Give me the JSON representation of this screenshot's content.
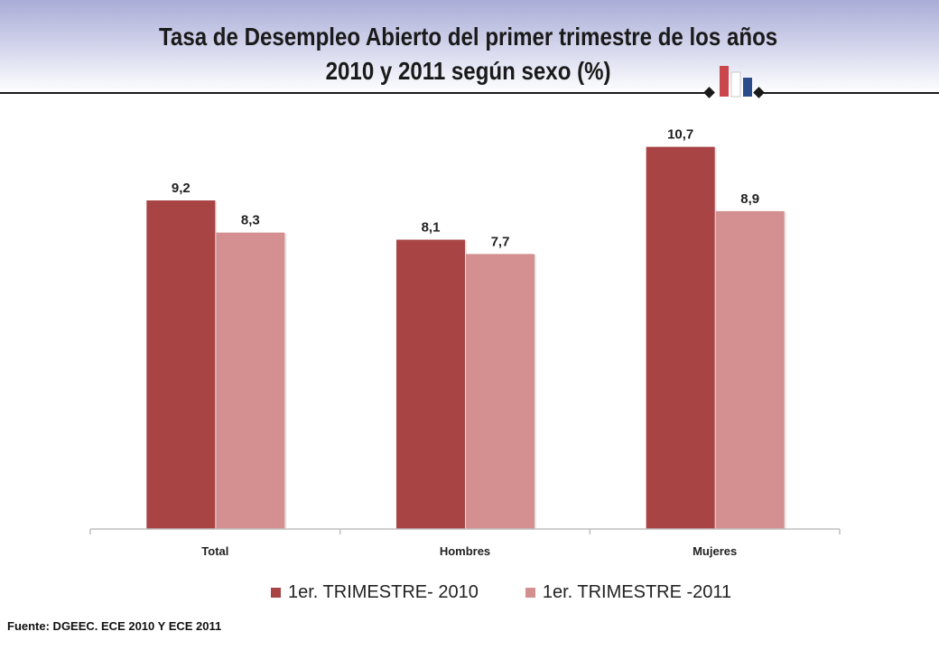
{
  "header": {
    "title_line1": "Tasa de Desempleo Abierto del primer trimestre de los años",
    "title_line2": "2010 y 2011 según sexo (%)"
  },
  "chart_data": {
    "type": "bar",
    "categories": [
      "Total",
      "Hombres",
      "Mujeres"
    ],
    "series": [
      {
        "name": "1er. TRIMESTRE- 2010",
        "values": [
          9.2,
          8.1,
          10.7
        ],
        "labels": [
          "9,2",
          "8,1",
          "10,7"
        ],
        "color": "#a84444"
      },
      {
        "name": "1er. TRIMESTRE -2011",
        "values": [
          8.3,
          7.7,
          8.9
        ],
        "labels": [
          "8,3",
          "7,7",
          "8,9"
        ],
        "color": "#d49090"
      }
    ],
    "ylim": [
      0,
      11.5
    ],
    "grid": false,
    "legend_position": "bottom"
  },
  "footer": {
    "source": "Fuente: DGEEC. ECE 2010 Y ECE 2011"
  },
  "colors": {
    "logo_red": "#c9464a",
    "logo_blue": "#2a4c8a",
    "rule": "#1a1a1a"
  }
}
